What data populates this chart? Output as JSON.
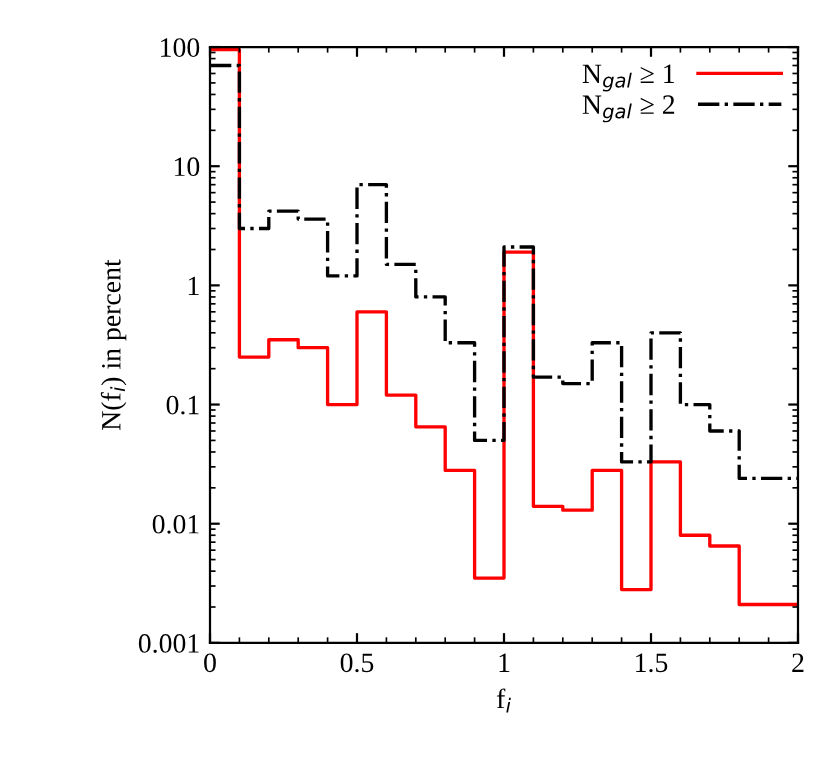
{
  "chart_data": {
    "type": "histogram",
    "xlabel": "f$_{i}$",
    "ylabel": "N(f$_{i}$) in percent",
    "bins": [
      0,
      0.1,
      0.2,
      0.3,
      0.4,
      0.5,
      0.6,
      0.7,
      0.8,
      0.9,
      1.0,
      1.1,
      1.2,
      1.3,
      1.4,
      1.5,
      1.6,
      1.7,
      1.8,
      1.9,
      2.0
    ],
    "series": [
      {
        "name": "N$_{gal}$ ≥ 1",
        "color": "#ff0000",
        "line_style": "solid",
        "values": [
          95,
          0.25,
          0.35,
          0.3,
          0.1,
          0.6,
          0.12,
          0.065,
          0.028,
          0.0035,
          1.9,
          0.014,
          0.013,
          0.028,
          0.0028,
          0.033,
          0.008,
          0.0065,
          0.0021,
          0.0021
        ]
      },
      {
        "name": "N$_{gal}$ ≥ 2",
        "color": "#000000",
        "line_style": "dashdot",
        "values": [
          70,
          3.0,
          4.2,
          3.6,
          1.2,
          7.0,
          1.5,
          0.8,
          0.33,
          0.05,
          2.1,
          0.17,
          0.15,
          0.33,
          0.033,
          0.4,
          0.1,
          0.06,
          0.024,
          0.024
        ]
      }
    ],
    "log": "y",
    "xlim": [
      0,
      2
    ],
    "ylim": [
      0.001,
      100
    ],
    "xticks": [
      0,
      0.5,
      1,
      1.5,
      2
    ],
    "yticks": [
      0.001,
      0.01,
      0.1,
      1,
      10,
      100
    ],
    "grid": false,
    "legend": "top right"
  }
}
